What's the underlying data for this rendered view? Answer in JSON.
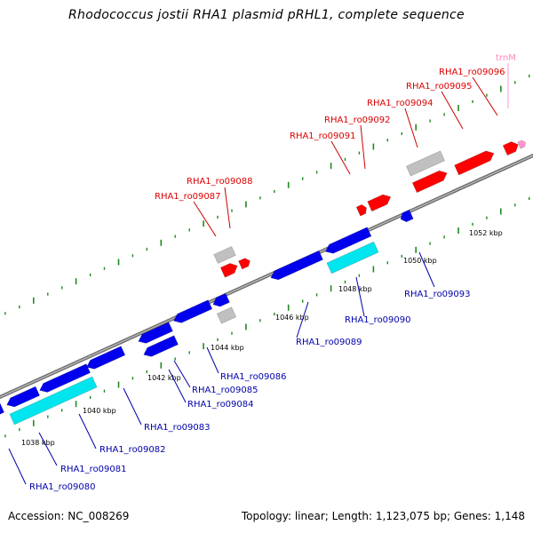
{
  "title": "Rhodococcus jostii RHA1 plasmid pRHL1, complete sequence",
  "footer": {
    "accession": "Accession: NC_008269",
    "summary": "Topology: linear; Length: 1,123,075 bp; Genes: 1,148"
  },
  "colors": {
    "backbone": "#7a7a7a",
    "tick": "#1f8a1f",
    "cds_forward": "#ff0000",
    "cds_reverse": "#0000ee",
    "cds_highlight": "#00e5ee",
    "pseudo": "#c0c0c0",
    "trna": "#ff99cc",
    "label_top": "#dd0000",
    "label_bottom": "#0000aa",
    "label_trna": "#ff88bb"
  },
  "scale_labels": [
    "1038 kbp",
    "1040 kbp",
    "1042 kbp",
    "1044 kbp",
    "1046 kbp",
    "1048 kbp",
    "1050 kbp",
    "1052 kbp"
  ],
  "top_labels": [
    "RHA1_ro09087",
    "RHA1_ro09088",
    "RHA1_ro09091",
    "RHA1_ro09092",
    "RHA1_ro09094",
    "RHA1_ro09095",
    "RHA1_ro09096",
    "trnM"
  ],
  "bottom_labels": [
    "RHA1_ro09080",
    "RHA1_ro09081",
    "RHA1_ro09082",
    "RHA1_ro09083",
    "RHA1_ro09084",
    "RHA1_ro09085",
    "RHA1_ro09086",
    "RHA1_ro09089",
    "RHA1_ro09090",
    "RHA1_ro09093"
  ]
}
